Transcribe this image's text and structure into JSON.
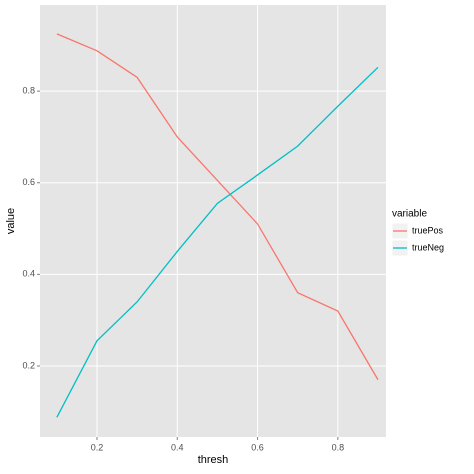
{
  "chart_data": {
    "type": "line",
    "x_label": "thresh",
    "y_label": "value",
    "x": [
      0.1,
      0.2,
      0.3,
      0.4,
      0.5,
      0.6,
      0.7,
      0.8,
      0.9
    ],
    "series": [
      {
        "name": "truePos",
        "color": "#F8766D",
        "values": [
          0.925,
          0.888,
          0.83,
          0.7,
          0.605,
          0.51,
          0.36,
          0.32,
          0.17
        ]
      },
      {
        "name": "trueNeg",
        "color": "#00BFC4",
        "values": [
          0.088,
          0.255,
          0.34,
          0.45,
          0.555,
          0.617,
          0.68,
          0.767,
          0.852
        ]
      }
    ],
    "legend_title": "variable",
    "legend_position": "right",
    "xlim": [
      0.058,
      0.92
    ],
    "xticks": [
      0.2,
      0.4,
      0.6,
      0.8
    ],
    "ylim": [
      0.045,
      0.988
    ],
    "yticks": [
      0.2,
      0.4,
      0.6,
      0.8
    ],
    "grid": true
  }
}
